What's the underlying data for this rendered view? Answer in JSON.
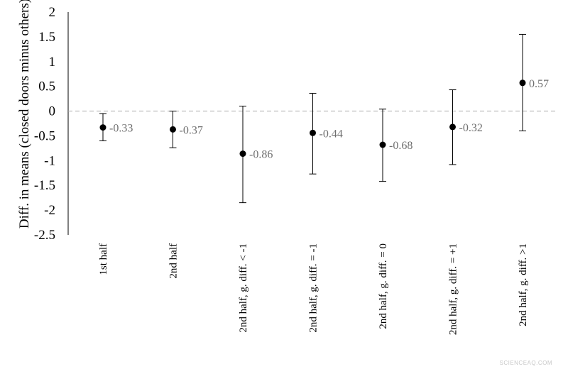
{
  "chart_data": {
    "type": "scatter",
    "title": "",
    "xlabel": "",
    "ylabel": "Diff. in means (closed doors minus others)",
    "ylim": [
      -2.5,
      2
    ],
    "yticks": [
      "2",
      "1.5",
      "1",
      "0.5",
      "0",
      "-0.5",
      "-1",
      "-1.5",
      "-2",
      "-2.5"
    ],
    "reference_line": {
      "y": 0,
      "style": "dashed"
    },
    "categories": [
      "1st half",
      "2nd half",
      "2nd half, g. diff. < -1",
      "2nd half, g. diff. = -1",
      "2nd half, g. diff. = 0",
      "2nd half, g. diff. = +1",
      "2nd half, g. diff. >1"
    ],
    "series": [
      {
        "values": [
          -0.33,
          -0.37,
          -0.86,
          -0.44,
          -0.68,
          -0.32,
          0.57
        ],
        "labels": [
          "-0.33",
          "-0.37",
          "-0.86",
          "-0.44",
          "-0.68",
          "-0.32",
          "0.57"
        ],
        "ci_low": [
          -0.6,
          -0.74,
          -1.85,
          -1.27,
          -1.42,
          -1.08,
          -0.4
        ],
        "ci_high": [
          -0.05,
          0.0,
          0.1,
          0.36,
          0.04,
          0.43,
          1.55
        ]
      }
    ],
    "grid": false,
    "legend": "none"
  },
  "watermark": "SCIENCEAQ.COM"
}
